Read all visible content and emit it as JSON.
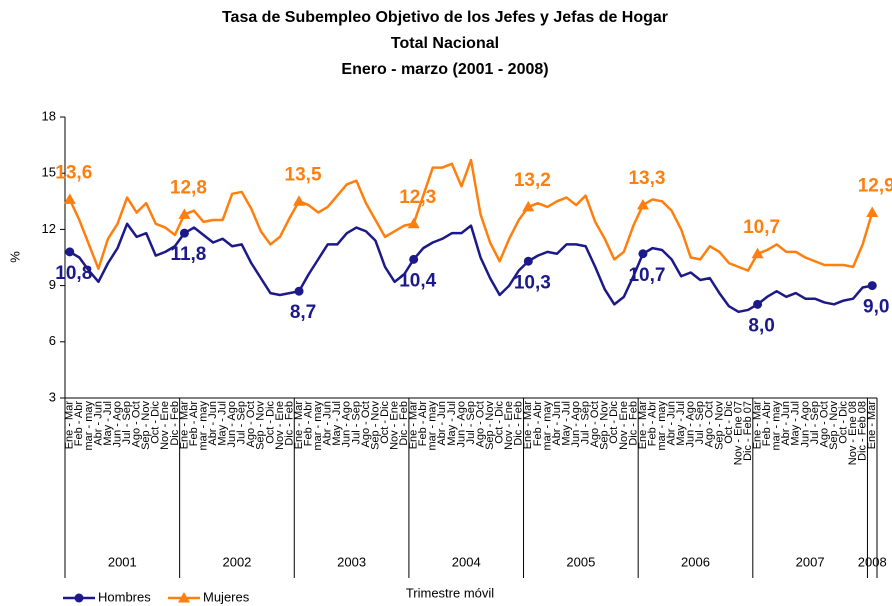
{
  "chart_data": {
    "type": "line",
    "title": [
      "Tasa de Subempleo Objetivo de los Jefes  y Jefas de Hogar",
      "Total Nacional",
      "Enero - marzo (2001 - 2008)"
    ],
    "y_label": "%",
    "x_label": "Trimestre móvil",
    "ylim": [
      3,
      18
    ],
    "yticks": [
      3,
      6,
      9,
      12,
      15,
      18
    ],
    "grid": false,
    "legend": "bottom-left",
    "categories": [
      "Ene - Mar",
      "Feb - Abr",
      "mar - may",
      "Abr - Jun",
      "May - Jul",
      "Jun - Ago",
      "Jul - Sep",
      "Ago - Oct",
      "Sep - Nov",
      "Oct - Dic",
      "Nov - Ene",
      "Dic - Feb",
      "Ene - Mar",
      "Feb - Abr",
      "mar - may",
      "Abr - Jun",
      "May - Jul",
      "Jun - Ago",
      "Jul - Sep",
      "Ago - Oct",
      "Sep - Nov",
      "Oct - Dic",
      "Nov - Ene",
      "Dic - Feb",
      "Ene - Mar",
      "Feb - Abr",
      "mar - may",
      "Abr - Jun",
      "May - Jul",
      "Jun - Ago",
      "Jul - Sep",
      "Ago - Oct",
      "Sep - Nov",
      "Oct - Dic",
      "Nov - Ene",
      "Dic - Feb",
      "Ene - Mar",
      "Feb - Abr",
      "mar - may",
      "Abr - Jun",
      "May - Jul",
      "Jun - Ago",
      "Jul - Sep",
      "Ago - Oct",
      "Sep - Nov",
      "Oct - Dic",
      "Nov - Ene",
      "Dic - Feb",
      "Ene - Mar",
      "Feb - Abr",
      "mar - may",
      "Abr - Jun",
      "May - Jul",
      "Jun - Ago",
      "Jul - Sep",
      "Ago - Oct",
      "Sep - Nov",
      "Oct - Dic",
      "Nov - Ene",
      "Dic - Feb",
      "Ene - Mar",
      "Feb - Abr",
      "mar - may",
      "Abr - Jun",
      "May - Jul",
      "Jun - Ago",
      "Jul - Sep",
      "Ago - Oct",
      "Sep - Nov",
      "Oct - Dic",
      "Nov - Ene 07",
      "Dic - Feb 07",
      "Ene - Mar",
      "Feb - Abr",
      "mar - may",
      "Abr - Jun",
      "May - Jul",
      "Jun - Ago",
      "Jul - Sep",
      "Ago - Oct",
      "Sep - Nov",
      "Oct - Dic",
      "Nov - Ene 08",
      "Dic - Feb 08",
      "Ene - Mar"
    ],
    "groups": [
      "2001",
      "2002",
      "2003",
      "2004",
      "2005",
      "2006",
      "2007",
      "2008"
    ],
    "series": [
      {
        "name": "Hombres",
        "color": "#1c1a8a",
        "marker": "circle",
        "label_side": "below",
        "values": [
          10.8,
          10.5,
          9.8,
          9.2,
          10.2,
          11.0,
          12.3,
          11.6,
          11.8,
          10.6,
          10.8,
          11.1,
          11.8,
          12.1,
          11.7,
          11.3,
          11.5,
          11.1,
          11.2,
          10.2,
          9.4,
          8.6,
          8.5,
          8.6,
          8.7,
          9.6,
          10.4,
          11.2,
          11.2,
          11.8,
          12.1,
          11.9,
          11.4,
          10.0,
          9.2,
          9.6,
          10.4,
          11.0,
          11.3,
          11.5,
          11.8,
          11.8,
          12.2,
          10.5,
          9.4,
          8.5,
          9.0,
          9.8,
          10.3,
          10.6,
          10.8,
          10.7,
          11.2,
          11.2,
          11.1,
          10.0,
          8.8,
          8.0,
          8.4,
          9.5,
          10.7,
          11.0,
          10.9,
          10.4,
          9.5,
          9.7,
          9.3,
          9.4,
          8.6,
          7.9,
          7.6,
          7.7,
          8.0,
          8.4,
          8.7,
          8.4,
          8.6,
          8.3,
          8.3,
          8.1,
          8.0,
          8.2,
          8.3,
          8.9,
          9.0
        ],
        "value_labels": [
          "10,8",
          null,
          null,
          null,
          null,
          null,
          null,
          null,
          null,
          null,
          null,
          null,
          "11,8",
          null,
          null,
          null,
          null,
          null,
          null,
          null,
          null,
          null,
          null,
          null,
          "8,7",
          null,
          null,
          null,
          null,
          null,
          null,
          null,
          null,
          null,
          null,
          null,
          "10,4",
          null,
          null,
          null,
          null,
          null,
          null,
          null,
          null,
          null,
          null,
          null,
          "10,3",
          null,
          null,
          null,
          null,
          null,
          null,
          null,
          null,
          null,
          null,
          null,
          "10,7",
          null,
          null,
          null,
          null,
          null,
          null,
          null,
          null,
          null,
          null,
          null,
          "8,0",
          null,
          null,
          null,
          null,
          null,
          null,
          null,
          null,
          null,
          null,
          null,
          "9,0"
        ]
      },
      {
        "name": "Mujeres",
        "color": "#ff7f0e",
        "marker": "triangle",
        "label_side": "above",
        "values": [
          13.6,
          12.5,
          11.2,
          9.9,
          11.5,
          12.3,
          13.7,
          12.9,
          13.4,
          12.3,
          12.1,
          11.7,
          12.8,
          13.0,
          12.4,
          12.5,
          12.5,
          13.9,
          14.0,
          13.1,
          11.9,
          11.2,
          11.6,
          12.6,
          13.5,
          13.3,
          12.9,
          13.2,
          13.8,
          14.4,
          14.6,
          13.4,
          12.5,
          11.6,
          11.9,
          12.2,
          12.3,
          13.8,
          15.3,
          15.3,
          15.5,
          14.3,
          15.7,
          12.8,
          11.3,
          10.3,
          11.5,
          12.5,
          13.2,
          13.4,
          13.2,
          13.5,
          13.7,
          13.3,
          13.8,
          12.4,
          11.5,
          10.4,
          10.8,
          12.2,
          13.3,
          13.6,
          13.5,
          13.0,
          12.0,
          10.5,
          10.4,
          11.1,
          10.8,
          10.2,
          10.0,
          9.8,
          10.7,
          10.9,
          11.2,
          10.8,
          10.8,
          10.5,
          10.3,
          10.1,
          10.1,
          10.1,
          10.0,
          11.2,
          12.9
        ],
        "value_labels": [
          "13,6",
          null,
          null,
          null,
          null,
          null,
          null,
          null,
          null,
          null,
          null,
          null,
          "12,8",
          null,
          null,
          null,
          null,
          null,
          null,
          null,
          null,
          null,
          null,
          null,
          "13,5",
          null,
          null,
          null,
          null,
          null,
          null,
          null,
          null,
          null,
          null,
          null,
          "12,3",
          null,
          null,
          null,
          null,
          null,
          null,
          null,
          null,
          null,
          null,
          null,
          "13,2",
          null,
          null,
          null,
          null,
          null,
          null,
          null,
          null,
          null,
          null,
          null,
          "13,3",
          null,
          null,
          null,
          null,
          null,
          null,
          null,
          null,
          null,
          null,
          null,
          "10,7",
          null,
          null,
          null,
          null,
          null,
          null,
          null,
          null,
          null,
          null,
          null,
          "12,9"
        ]
      }
    ]
  }
}
